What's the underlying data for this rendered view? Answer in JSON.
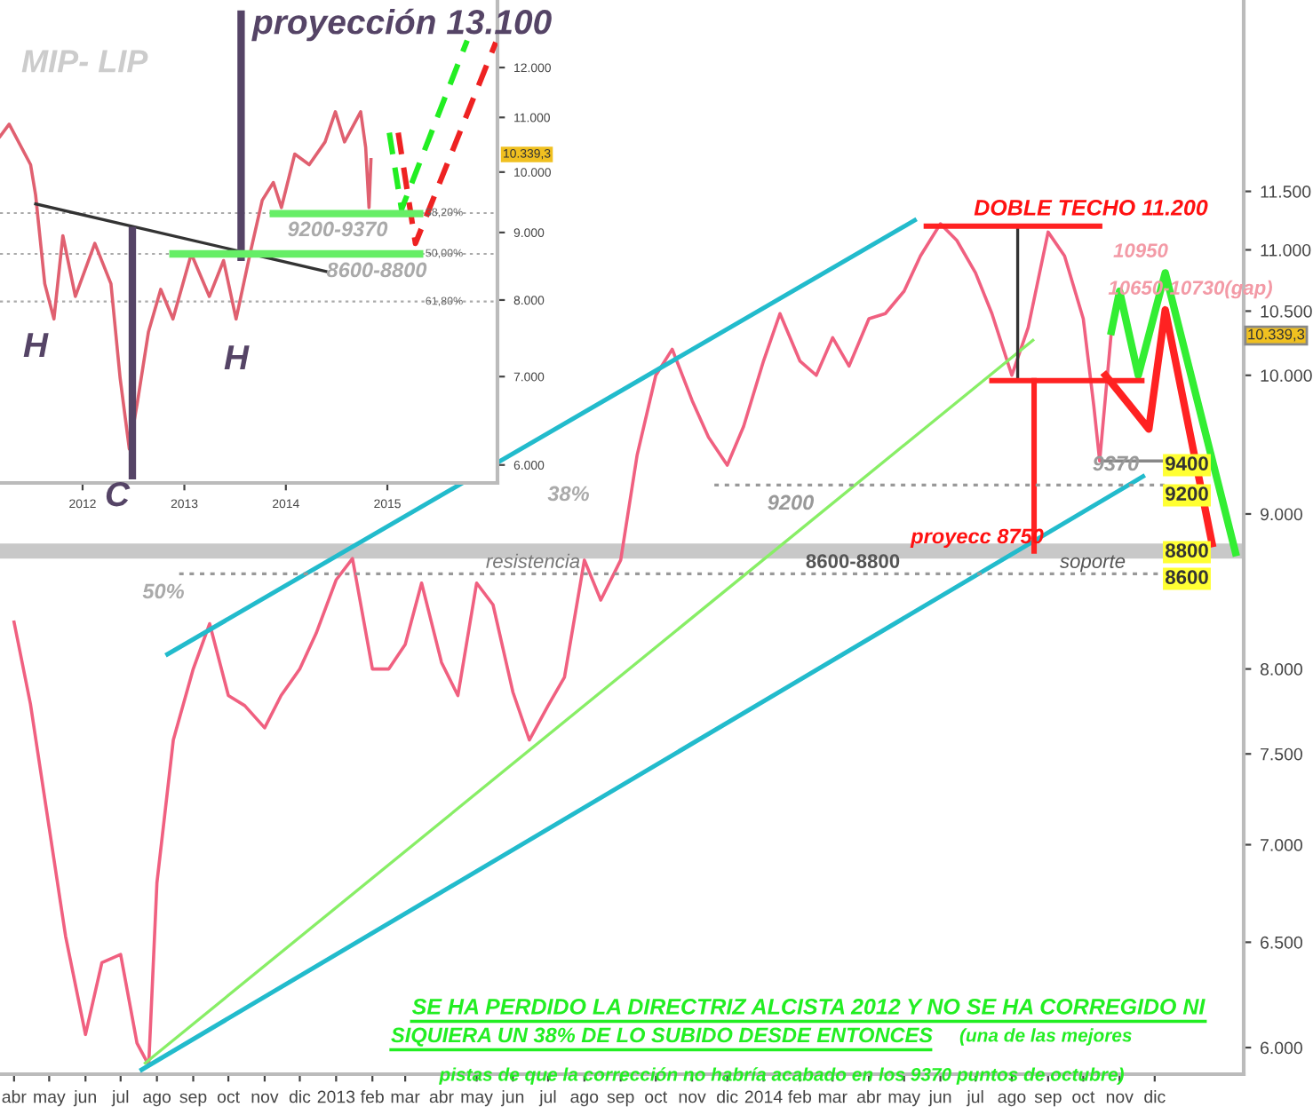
{
  "chart_data": [
    {
      "type": "line",
      "log": true,
      "grid": false,
      "legend": false,
      "xlim": [
        "2012-03-20",
        "2015-02-15"
      ],
      "ylim": [
        5880,
        13300
      ],
      "xticks": [
        {
          "value": "2012-04-01",
          "label": "abr"
        },
        {
          "value": "2012-05-01",
          "label": "may"
        },
        {
          "value": "2012-06-01",
          "label": "jun"
        },
        {
          "value": "2012-07-01",
          "label": "jul"
        },
        {
          "value": "2012-08-01",
          "label": "ago"
        },
        {
          "value": "2012-09-01",
          "label": "sep"
        },
        {
          "value": "2012-10-01",
          "label": "oct"
        },
        {
          "value": "2012-11-01",
          "label": "nov"
        },
        {
          "value": "2012-12-01",
          "label": "dic"
        },
        {
          "value": "2013-01-01",
          "label": "2013"
        },
        {
          "value": "2013-02-01",
          "label": "feb"
        },
        {
          "value": "2013-03-01",
          "label": "mar"
        },
        {
          "value": "2013-04-01",
          "label": "abr"
        },
        {
          "value": "2013-05-01",
          "label": "may"
        },
        {
          "value": "2013-06-01",
          "label": "jun"
        },
        {
          "value": "2013-07-01",
          "label": "jul"
        },
        {
          "value": "2013-08-01",
          "label": "ago"
        },
        {
          "value": "2013-09-01",
          "label": "sep"
        },
        {
          "value": "2013-10-01",
          "label": "oct"
        },
        {
          "value": "2013-11-01",
          "label": "nov"
        },
        {
          "value": "2013-12-01",
          "label": "dic"
        },
        {
          "value": "2014-01-01",
          "label": "2014"
        },
        {
          "value": "2014-02-01",
          "label": "feb"
        },
        {
          "value": "2014-03-01",
          "label": "mar"
        },
        {
          "value": "2014-04-01",
          "label": "abr"
        },
        {
          "value": "2014-05-01",
          "label": "may"
        },
        {
          "value": "2014-06-01",
          "label": "jun"
        },
        {
          "value": "2014-07-01",
          "label": "jul"
        },
        {
          "value": "2014-08-01",
          "label": "ago"
        },
        {
          "value": "2014-09-01",
          "label": "sep"
        },
        {
          "value": "2014-10-01",
          "label": "oct"
        },
        {
          "value": "2014-11-01",
          "label": "nov"
        },
        {
          "value": "2014-12-01",
          "label": "dic"
        }
      ],
      "yticks": [
        {
          "value": 6000,
          "label": "6.000"
        },
        {
          "value": 6500,
          "label": "6.500"
        },
        {
          "value": 7000,
          "label": "7.000"
        },
        {
          "value": 7500,
          "label": "7.500"
        },
        {
          "value": 8000,
          "label": "8.000"
        },
        {
          "value": 9000,
          "label": "9.000"
        },
        {
          "value": 10000,
          "label": "10.000"
        },
        {
          "value": 10500,
          "label": "10.500"
        },
        {
          "value": 11000,
          "label": "11.000"
        },
        {
          "value": 11500,
          "label": "11.500"
        }
      ],
      "bands": [
        {
          "axis": "y",
          "from": 8700,
          "to": 8800,
          "color": "#c8c8c8"
        }
      ],
      "series": [
        {
          "color": "#f06080",
          "x": [
            "2012-04-01",
            "2012-04-15",
            "2012-05-01",
            "2012-05-15",
            "2012-06-01",
            "2012-06-15",
            "2012-07-01",
            "2012-07-15",
            "2012-07-25",
            "2012-08-01",
            "2012-08-15",
            "2012-09-01",
            "2012-09-15",
            "2012-10-01",
            "2012-10-15",
            "2012-11-01",
            "2012-11-15",
            "2012-12-01",
            "2012-12-15",
            "2013-01-01",
            "2013-01-15",
            "2013-02-01",
            "2013-02-15",
            "2013-03-01",
            "2013-03-15",
            "2013-04-01",
            "2013-04-15",
            "2013-05-01",
            "2013-05-15",
            "2013-06-01",
            "2013-06-15",
            "2013-07-01",
            "2013-07-15",
            "2013-08-01",
            "2013-08-15",
            "2013-09-01",
            "2013-09-15",
            "2013-10-01",
            "2013-10-15",
            "2013-11-01",
            "2013-11-15",
            "2013-12-01",
            "2013-12-15",
            "2014-01-01",
            "2014-01-15",
            "2014-02-01",
            "2014-02-15",
            "2014-03-01",
            "2014-03-15",
            "2014-04-01",
            "2014-04-15",
            "2014-05-01",
            "2014-05-15",
            "2014-06-01",
            "2014-06-15",
            "2014-07-01",
            "2014-07-15",
            "2014-08-01",
            "2014-08-15",
            "2014-09-01",
            "2014-09-15",
            "2014-10-01",
            "2014-10-10",
            "2014-10-15",
            "2014-10-25"
          ],
          "values": [
            8290,
            7790,
            7090,
            6530,
            6060,
            6400,
            6440,
            6020,
            5920,
            6800,
            7580,
            8000,
            8280,
            7840,
            7780,
            7650,
            7840,
            8000,
            8220,
            8560,
            8700,
            8000,
            8000,
            8150,
            8540,
            8040,
            7840,
            8540,
            8400,
            7860,
            7580,
            7780,
            7950,
            8690,
            8430,
            8690,
            9410,
            10000,
            10200,
            9810,
            9540,
            9340,
            9620,
            10110,
            10480,
            10110,
            10000,
            10290,
            10070,
            10440,
            10480,
            10660,
            10950,
            11220,
            11080,
            10810,
            10480,
            10000,
            10370,
            11150,
            10950,
            10440,
            9770,
            9370,
            10339
          ]
        },
        {
          "color": "#33ee33",
          "x": [
            "2014-10-25",
            "2014-11-01",
            "2014-11-17",
            "2014-12-10",
            "2015-02-08"
          ],
          "values": [
            10339,
            10660,
            10000,
            10810,
            8740
          ]
        },
        {
          "color": "#ff2222",
          "x": [
            "2014-10-20",
            "2014-11-26",
            "2014-12-10",
            "2015-01-19"
          ],
          "values": [
            10000,
            9600,
            10510,
            8800
          ]
        },
        {
          "color": "#22bbcc",
          "x": [
            "2012-08-10",
            "2014-05-10"
          ],
          "values": [
            8090,
            11250
          ]
        },
        {
          "color": "#22bbcc",
          "x": [
            "2012-07-19",
            "2014-11-21"
          ],
          "values": [
            5900,
            9260
          ]
        },
        {
          "color": "#88ee66",
          "x": [
            "2012-07-22",
            "2014-08-19"
          ],
          "values": [
            5930,
            10270
          ]
        },
        {
          "color": "#ff2222",
          "x": [
            "2014-08-20",
            "2014-08-20"
          ],
          "values": [
            9960,
            8750
          ]
        },
        {
          "color": "#333333",
          "x": [
            "2014-08-06",
            "2014-08-06"
          ],
          "values": [
            11200,
            9960
          ]
        },
        {
          "color": "#ff2222",
          "x": [
            "2014-05-20",
            "2014-10-15"
          ],
          "values": [
            11200,
            11200
          ]
        },
        {
          "color": "#ff2222",
          "x": [
            "2014-07-15",
            "2014-11-20"
          ],
          "values": [
            9960,
            9960
          ]
        },
        {
          "color": "#888888",
          "x": [
            "2014-10-17",
            "2014-12-20"
          ],
          "values": [
            9370,
            9370
          ]
        },
        {
          "color": "#999999",
          "line_style": "dotted",
          "x": [
            "2013-11-20",
            "2014-12-10"
          ],
          "values": [
            9200,
            9200
          ]
        },
        {
          "color": "#999999",
          "line_style": "dotted",
          "x": [
            "2012-08-20",
            "2014-12-10"
          ],
          "values": [
            8600,
            8600
          ]
        }
      ],
      "annotations": [
        "DOBLE TECHO 11.200",
        "10950",
        "10650-10730(gap)",
        "9370",
        "9200",
        "38%",
        "50%",
        "resistencia",
        "8600-8800",
        "soporte",
        "proyecc 8750",
        "9400",
        "9200",
        "8800",
        "8600",
        "10.339,3",
        "SE HA PERDIDO LA DIRECTRIZ ALCISTA 2012 Y NO SE HA CORREGIDO NI",
        "SIQUIERA UN 38% DE LO SUBIDO DESDE ENTONCES",
        "(una de las mejores",
        "pistas de que la corrección no habría acabado en los 9370 puntos de octubre)"
      ]
    },
    {
      "type": "line",
      "log": true,
      "grid": false,
      "legend": false,
      "xlim": [
        "2011-03-10",
        "2016-02-01"
      ],
      "ylim": [
        5815,
        13500
      ],
      "xticks": [
        {
          "value": "2012-01-01",
          "label": "2012"
        },
        {
          "value": "2013-01-01",
          "label": "2013"
        },
        {
          "value": "2014-01-01",
          "label": "2014"
        },
        {
          "value": "2015-01-01",
          "label": "2015"
        }
      ],
      "yticks": [
        {
          "value": 6000,
          "label": "6.000"
        },
        {
          "value": 7000,
          "label": "7.000"
        },
        {
          "value": 8000,
          "label": "8.000"
        },
        {
          "value": 9000,
          "label": "9.000"
        },
        {
          "value": 10000,
          "label": "10.000"
        },
        {
          "value": 11000,
          "label": "11.000"
        },
        {
          "value": 12000,
          "label": "12.000"
        }
      ],
      "ref_lines": [
        {
          "axis": "y",
          "value": 9310,
          "color": "#aaaaaa",
          "line_style": "dotted"
        },
        {
          "axis": "y",
          "value": 8670,
          "color": "#aaaaaa",
          "line_style": "dotted"
        },
        {
          "axis": "y",
          "value": 7980,
          "color": "#aaaaaa",
          "line_style": "dotted"
        }
      ],
      "series": [
        {
          "color": "#e06070",
          "x": [
            "2011-03-10",
            "2011-04-12",
            "2011-06-28",
            "2011-07-16",
            "2011-08-18",
            "2011-09-20",
            "2011-10-22",
            "2011-12-06",
            "2012-02-14",
            "2012-04-12",
            "2012-05-15",
            "2012-06-17",
            "2012-07-16",
            "2012-08-25",
            "2012-10-08",
            "2012-11-21",
            "2013-01-26",
            "2013-04-01",
            "2013-05-22",
            "2013-07-06",
            "2013-08-25",
            "2013-10-08",
            "2013-11-17",
            "2013-12-16",
            "2014-02-02",
            "2014-03-26",
            "2014-05-22",
            "2014-06-28",
            "2014-07-31",
            "2014-09-27",
            "2014-10-15",
            "2014-10-27",
            "2014-11-03"
          ],
          "values": [
            10640,
            10870,
            10130,
            9610,
            8230,
            7740,
            8950,
            8050,
            8830,
            8230,
            6980,
            6170,
            6690,
            7570,
            8150,
            7740,
            8670,
            8050,
            8570,
            7740,
            8670,
            9520,
            9820,
            9400,
            10320,
            10130,
            10540,
            11110,
            10540,
            11110,
            10440,
            9400,
            10220
          ]
        },
        {
          "color": "#333333",
          "x": [
            "2011-07-16",
            "2014-05-25"
          ],
          "values": [
            9460,
            8410
          ]
        },
        {
          "color": "#554466",
          "x": [
            "2012-06-28",
            "2012-06-28"
          ],
          "values": [
            9030,
            5890
          ]
        },
        {
          "color": "#554466",
          "x": [
            "2013-07-24",
            "2013-07-24"
          ],
          "values": [
            13170,
            8620
          ]
        },
        {
          "color": "#22ee22",
          "line_style": "dashed",
          "x": [
            "2015-01-08",
            "2015-02-21",
            "2015-10-15"
          ],
          "values": [
            10710,
            9370,
            12580
          ]
        },
        {
          "color": "#ee2222",
          "line_style": "dashed",
          "x": [
            "2015-02-09",
            "2015-04-12",
            "2016-01-26"
          ],
          "values": [
            10710,
            8830,
            12540
          ]
        },
        {
          "color": "#66ee66",
          "x": [
            "2013-11-17",
            "2015-04-27"
          ],
          "values": [
            9300,
            9300
          ]
        },
        {
          "color": "#66ee66",
          "x": [
            "2012-11-21",
            "2015-04-27"
          ],
          "values": [
            8670,
            8670
          ]
        }
      ],
      "annotations": [
        "MIP- LIP",
        "proyección 13.100",
        "H",
        "H",
        "C",
        "9200-9370",
        "8600-8800",
        "10.339,3",
        "38,20%",
        "50,00%",
        "61,80%"
      ]
    }
  ]
}
